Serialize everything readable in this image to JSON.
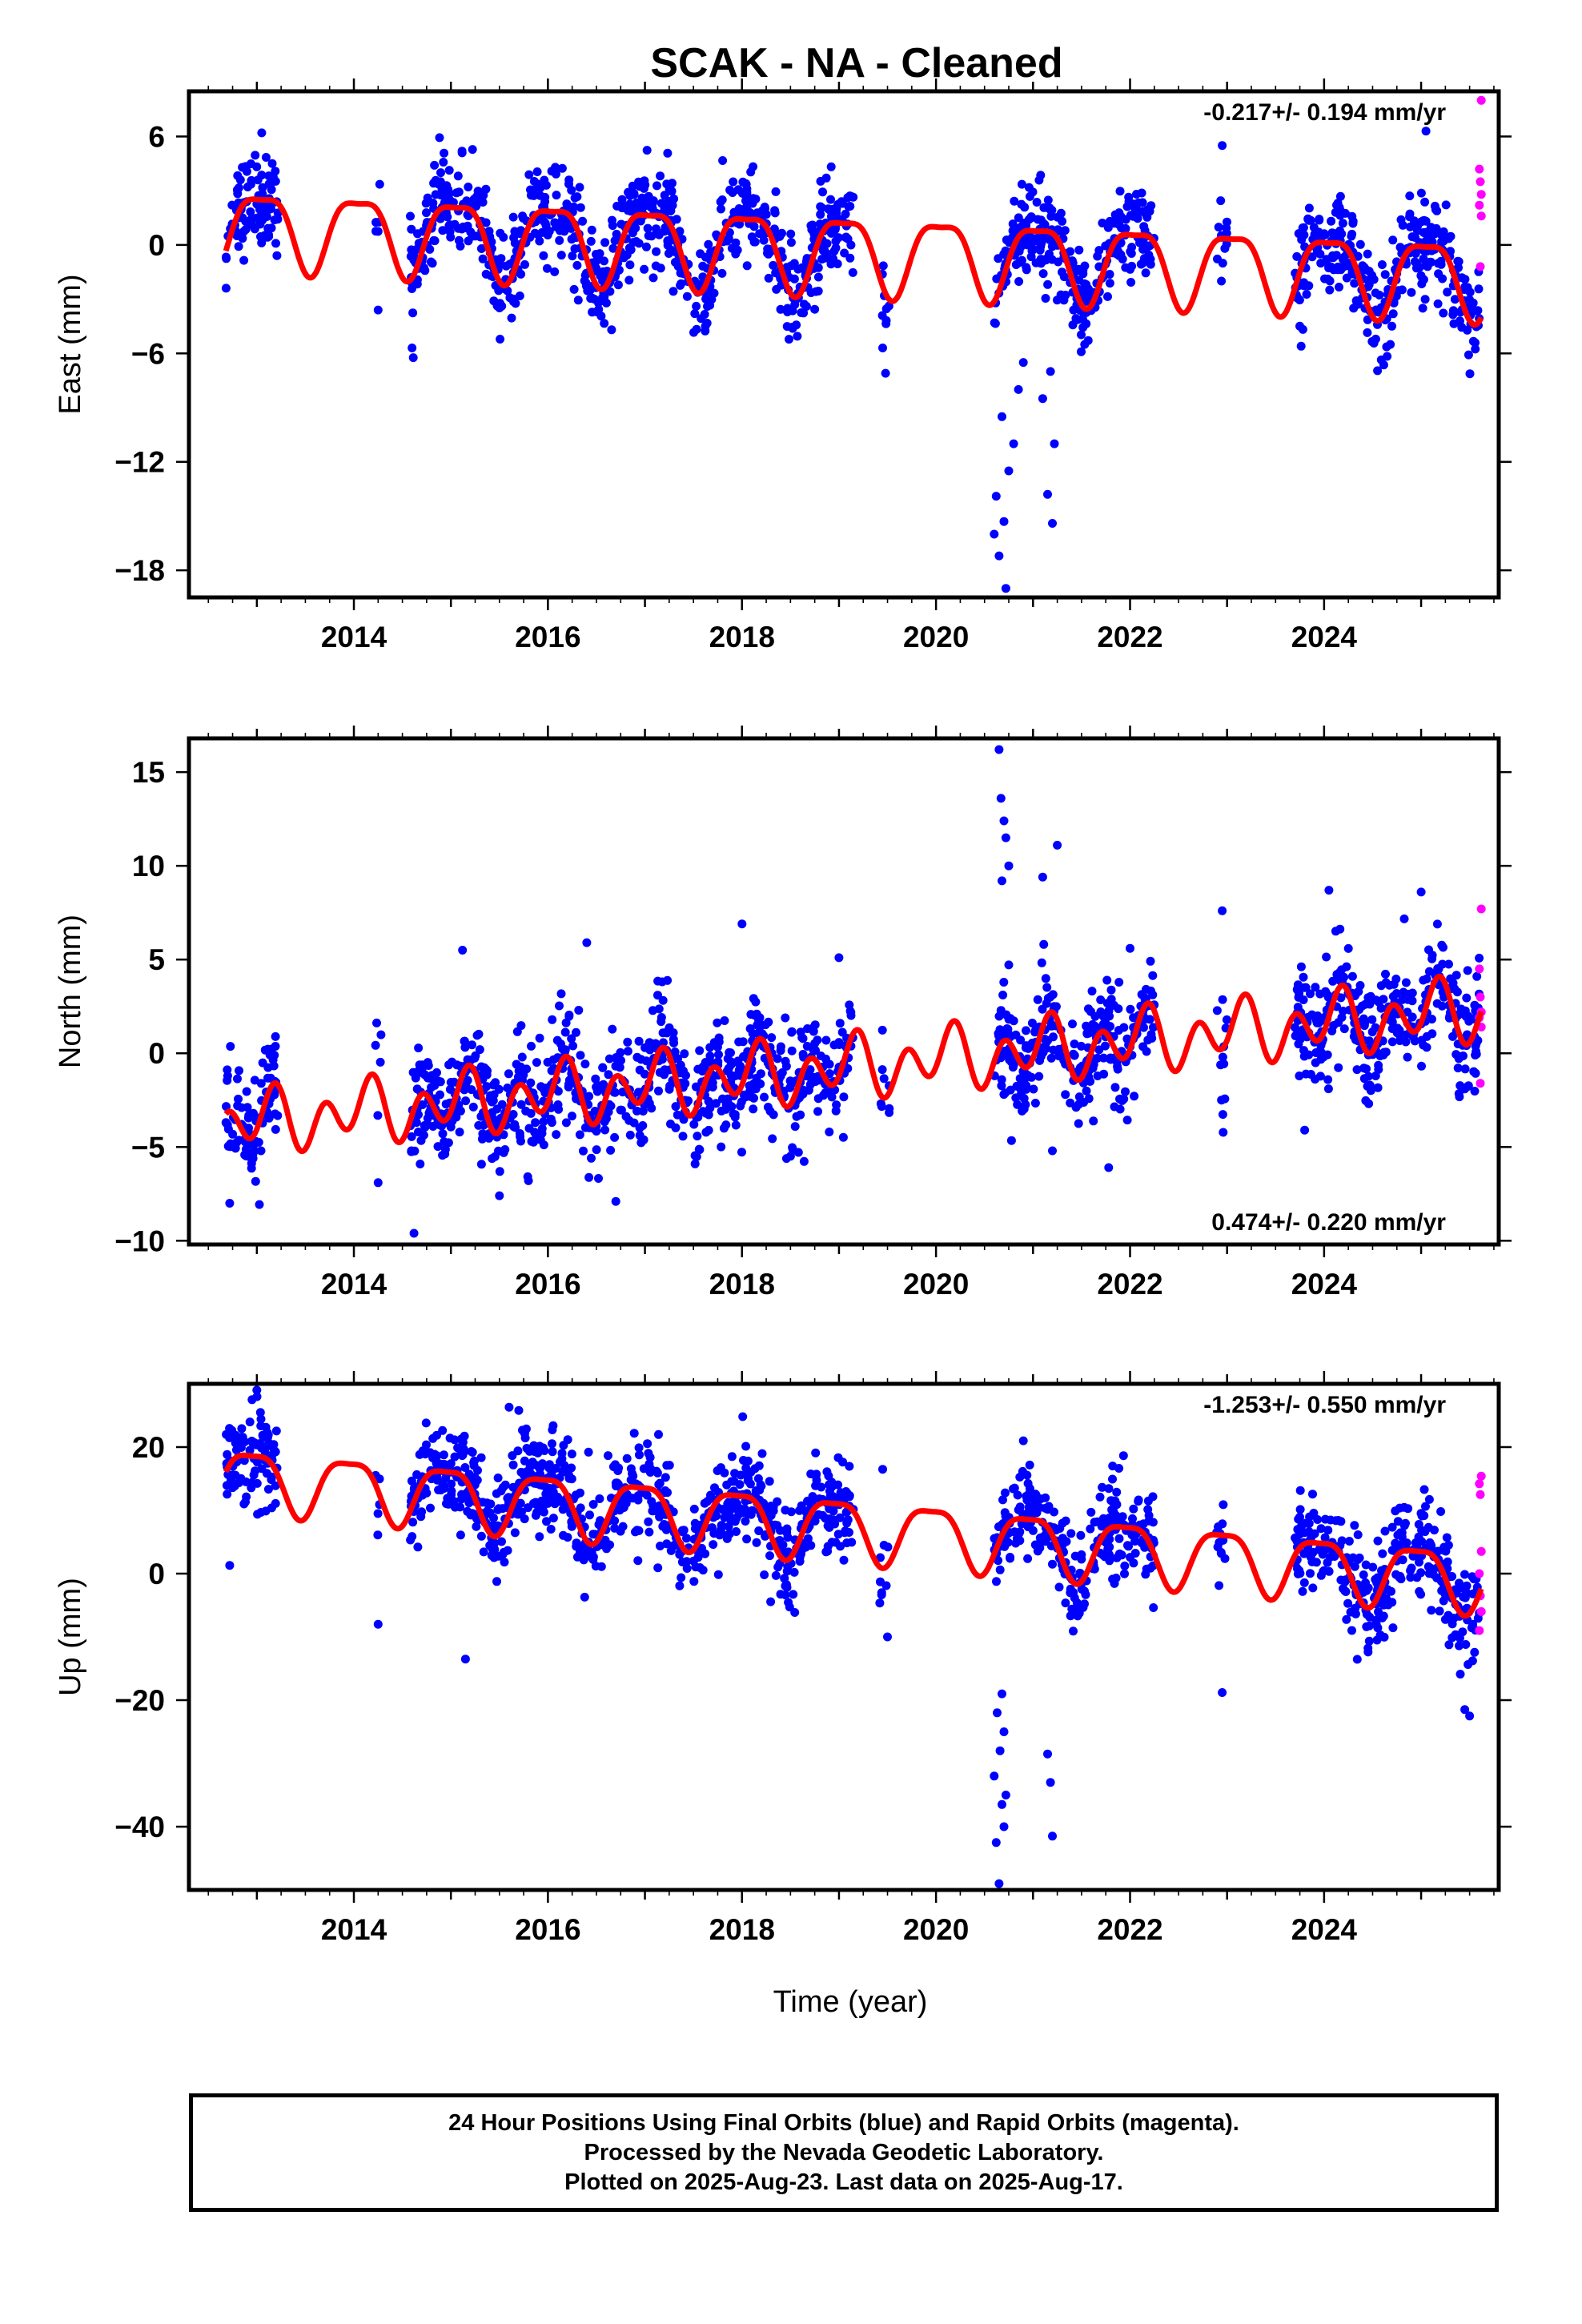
{
  "title": "SCAK  - NA - Cleaned",
  "colors": {
    "final_orbits": "#0000ff",
    "rapid_orbits": "#ff00ff",
    "model": "#ff0000"
  },
  "x_axis": {
    "label": "Time (year)",
    "ticks": [
      2014,
      2016,
      2018,
      2020,
      2022,
      2024
    ],
    "range": [
      2012.3,
      2025.8
    ]
  },
  "chart_data": [
    {
      "type": "scatter",
      "name": "east",
      "ylabel": "East (mm)",
      "ylim": [
        -19.5,
        8.5
      ],
      "yticks": [
        "6",
        "0",
        "−6",
        "−12",
        "−18"
      ],
      "ytick_values": [
        6,
        0,
        -6,
        -12,
        -18
      ],
      "rate_text": "-0.217+/- 0.194 mm/yr",
      "rate_position": "top-right",
      "model": {
        "offset": -0.3,
        "trend": -0.217,
        "annual_amp": 2.1,
        "annual_phase": 0.05,
        "semiannual_amp": 0.6,
        "semiannual_phase": 0.3,
        "noise": 1.3
      },
      "outliers": [
        {
          "x": 2020.72,
          "y": -19.0
        },
        {
          "x": 2020.65,
          "y": -17.2
        },
        {
          "x": 2020.6,
          "y": -16.0
        },
        {
          "x": 2020.7,
          "y": -15.3
        },
        {
          "x": 2020.62,
          "y": -13.9
        },
        {
          "x": 2020.75,
          "y": -12.5
        },
        {
          "x": 2020.8,
          "y": -11.0
        },
        {
          "x": 2020.68,
          "y": -9.5
        },
        {
          "x": 2020.85,
          "y": -8.0
        },
        {
          "x": 2020.9,
          "y": -6.5
        },
        {
          "x": 2021.2,
          "y": -15.4
        },
        {
          "x": 2021.15,
          "y": -13.8
        },
        {
          "x": 2021.22,
          "y": -11.0
        },
        {
          "x": 2021.1,
          "y": -8.5
        },
        {
          "x": 2021.18,
          "y": -7.0
        },
        {
          "x": 2019.48,
          "y": -7.1
        },
        {
          "x": 2019.45,
          "y": -5.7
        },
        {
          "x": 2014.25,
          "y": -3.6
        },
        {
          "x": 2014.6,
          "y": -5.7
        },
        {
          "x": 2022.95,
          "y": 5.5
        },
        {
          "x": 2025.05,
          "y": 6.3
        },
        {
          "x": 2013.05,
          "y": 6.2
        }
      ],
      "rapid": [
        {
          "x": 2025.62,
          "y": 8.0
        },
        {
          "x": 2025.6,
          "y": 4.2
        },
        {
          "x": 2025.61,
          "y": 3.5
        },
        {
          "x": 2025.62,
          "y": 2.8
        },
        {
          "x": 2025.6,
          "y": 2.2
        },
        {
          "x": 2025.62,
          "y": 1.6
        },
        {
          "x": 2025.61,
          "y": -1.2
        }
      ]
    },
    {
      "type": "scatter",
      "name": "north",
      "ylabel": "North (mm)",
      "ylim": [
        -10.2,
        16.8
      ],
      "yticks": [
        "15",
        "10",
        "5",
        "0",
        "−5",
        "−10"
      ],
      "ytick_values": [
        15,
        10,
        5,
        0,
        -5,
        -10
      ],
      "rate_text": "0.474+/- 0.220 mm/yr",
      "rate_position": "bottom-right",
      "model": {
        "offset": -0.8,
        "trend": 0.474,
        "annual_amp": 0.8,
        "annual_phase": 0.1,
        "semiannual_amp": 1.3,
        "semiannual_phase": 0.2,
        "noise": 1.5
      },
      "outliers": [
        {
          "x": 2020.65,
          "y": 16.2
        },
        {
          "x": 2020.67,
          "y": 13.6
        },
        {
          "x": 2020.7,
          "y": 12.4
        },
        {
          "x": 2020.72,
          "y": 11.5
        },
        {
          "x": 2020.75,
          "y": 10.0
        },
        {
          "x": 2020.68,
          "y": 9.2
        },
        {
          "x": 2021.25,
          "y": 11.1
        },
        {
          "x": 2021.1,
          "y": 9.4
        },
        {
          "x": 2018.0,
          "y": 6.9
        },
        {
          "x": 2024.05,
          "y": 8.7
        },
        {
          "x": 2025.0,
          "y": 8.6
        },
        {
          "x": 2014.62,
          "y": -9.6
        },
        {
          "x": 2012.72,
          "y": -8.0
        },
        {
          "x": 2016.7,
          "y": -7.9
        },
        {
          "x": 2015.5,
          "y": -7.6
        },
        {
          "x": 2022.0,
          "y": 5.6
        },
        {
          "x": 2016.4,
          "y": 5.9
        },
        {
          "x": 2015.12,
          "y": 5.5
        },
        {
          "x": 2019.0,
          "y": 5.1
        },
        {
          "x": 2021.2,
          "y": -5.2
        },
        {
          "x": 2021.78,
          "y": -6.1
        },
        {
          "x": 2023.8,
          "y": -4.1
        },
        {
          "x": 2025.45,
          "y": -1.9
        },
        {
          "x": 2015.8,
          "y": -6.8
        },
        {
          "x": 2014.25,
          "y": -6.9
        },
        {
          "x": 2022.95,
          "y": 7.6
        }
      ],
      "rapid": [
        {
          "x": 2025.62,
          "y": 7.7
        },
        {
          "x": 2025.6,
          "y": 4.5
        },
        {
          "x": 2025.61,
          "y": 3.0
        },
        {
          "x": 2025.62,
          "y": 2.2
        },
        {
          "x": 2025.6,
          "y": 1.9
        },
        {
          "x": 2025.62,
          "y": 1.4
        },
        {
          "x": 2025.61,
          "y": -1.6
        }
      ]
    },
    {
      "type": "scatter",
      "name": "up",
      "ylabel": "Up (mm)",
      "ylim": [
        -50,
        30
      ],
      "yticks": [
        "20",
        "0",
        "−20",
        "−40"
      ],
      "ytick_values": [
        20,
        0,
        -20,
        -40
      ],
      "rate_text": "-1.253+/- 0.550 mm/yr",
      "rate_position": "top-right",
      "model": {
        "offset": 7.5,
        "trend": -1.253,
        "annual_amp": 4.8,
        "annual_phase": -0.05,
        "semiannual_amp": 1.3,
        "semiannual_phase": 0.2,
        "noise": 3.8
      },
      "outliers": [
        {
          "x": 2020.65,
          "y": -49.0
        },
        {
          "x": 2020.62,
          "y": -42.5
        },
        {
          "x": 2020.7,
          "y": -40.0
        },
        {
          "x": 2020.68,
          "y": -36.5
        },
        {
          "x": 2020.72,
          "y": -35.0
        },
        {
          "x": 2020.6,
          "y": -32.0
        },
        {
          "x": 2020.66,
          "y": -28.0
        },
        {
          "x": 2020.7,
          "y": -25.0
        },
        {
          "x": 2020.63,
          "y": -22.0
        },
        {
          "x": 2020.68,
          "y": -19.0
        },
        {
          "x": 2021.2,
          "y": -41.5
        },
        {
          "x": 2021.15,
          "y": -28.5
        },
        {
          "x": 2021.18,
          "y": -33.0
        },
        {
          "x": 2013.0,
          "y": 29.0
        },
        {
          "x": 2012.95,
          "y": 27.5
        },
        {
          "x": 2015.6,
          "y": 26.3
        },
        {
          "x": 2015.7,
          "y": 25.8
        },
        {
          "x": 2020.9,
          "y": 21.0
        },
        {
          "x": 2014.25,
          "y": -8.0
        },
        {
          "x": 2015.15,
          "y": -13.5
        },
        {
          "x": 2022.95,
          "y": -18.8
        },
        {
          "x": 2019.45,
          "y": 16.5
        },
        {
          "x": 2019.5,
          "y": -10.0
        },
        {
          "x": 2025.5,
          "y": -22.5
        },
        {
          "x": 2025.45,
          "y": -21.5
        },
        {
          "x": 2012.72,
          "y": 1.3
        }
      ],
      "rapid": [
        {
          "x": 2025.62,
          "y": 15.4
        },
        {
          "x": 2025.6,
          "y": 14.2
        },
        {
          "x": 2025.61,
          "y": 12.5
        },
        {
          "x": 2025.62,
          "y": 3.5
        },
        {
          "x": 2025.6,
          "y": 0.0
        },
        {
          "x": 2025.61,
          "y": -3.5
        },
        {
          "x": 2025.62,
          "y": -6.0
        },
        {
          "x": 2025.6,
          "y": -9.0
        }
      ]
    }
  ],
  "data_segments": [
    {
      "start": 2012.68,
      "end": 2013.22,
      "density": 1.0
    },
    {
      "start": 2014.22,
      "end": 2014.28,
      "density": 0.5
    },
    {
      "start": 2014.58,
      "end": 2017.45,
      "density": 1.0
    },
    {
      "start": 2017.5,
      "end": 2019.15,
      "density": 1.0
    },
    {
      "start": 2019.42,
      "end": 2019.52,
      "density": 0.5
    },
    {
      "start": 2020.6,
      "end": 2021.35,
      "density": 1.0
    },
    {
      "start": 2021.38,
      "end": 2022.25,
      "density": 1.0
    },
    {
      "start": 2022.88,
      "end": 2023.0,
      "density": 0.6
    },
    {
      "start": 2023.7,
      "end": 2025.6,
      "density": 1.0
    }
  ],
  "caption": {
    "line1": "24 Hour Positions Using Final Orbits (blue) and Rapid Orbits (magenta).",
    "line2": "Processed by the Nevada Geodetic Laboratory.",
    "line3": "Plotted on 2025-Aug-23. Last data on 2025-Aug-17."
  }
}
